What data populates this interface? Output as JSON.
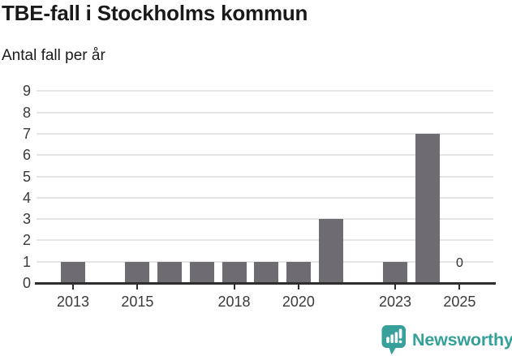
{
  "header": {
    "title": "TBE-fall i Stockholms kommun",
    "subtitle": "Antal fall per år"
  },
  "chart_data": {
    "type": "bar",
    "title": "TBE-fall i Stockholms kommun",
    "subtitle": "Antal fall per år",
    "categories": [
      2013,
      2014,
      2015,
      2016,
      2017,
      2018,
      2019,
      2020,
      2021,
      2022,
      2023,
      2024,
      2025
    ],
    "values": [
      1,
      0,
      1,
      1,
      1,
      1,
      1,
      1,
      3,
      0,
      1,
      7,
      0
    ],
    "x_tick_labels": [
      "2013",
      "2015",
      "2018",
      "2020",
      "2023",
      "2025"
    ],
    "y_ticks": [
      0,
      1,
      2,
      3,
      4,
      5,
      6,
      7,
      8,
      9
    ],
    "ylim": [
      0,
      9
    ],
    "grid": "horizontal-only",
    "legend": "none",
    "bar_color": "#6e6c71",
    "gridline_color": "#e4e3e5",
    "axis_color": "#2e2e2e",
    "annotations": [
      {
        "category": 2025,
        "value": 0,
        "text": "0"
      }
    ]
  },
  "footer": {
    "brand": "Newsworthy",
    "brand_color": "#35a099",
    "logo_icon": "bar-chart-speech-bubble"
  }
}
